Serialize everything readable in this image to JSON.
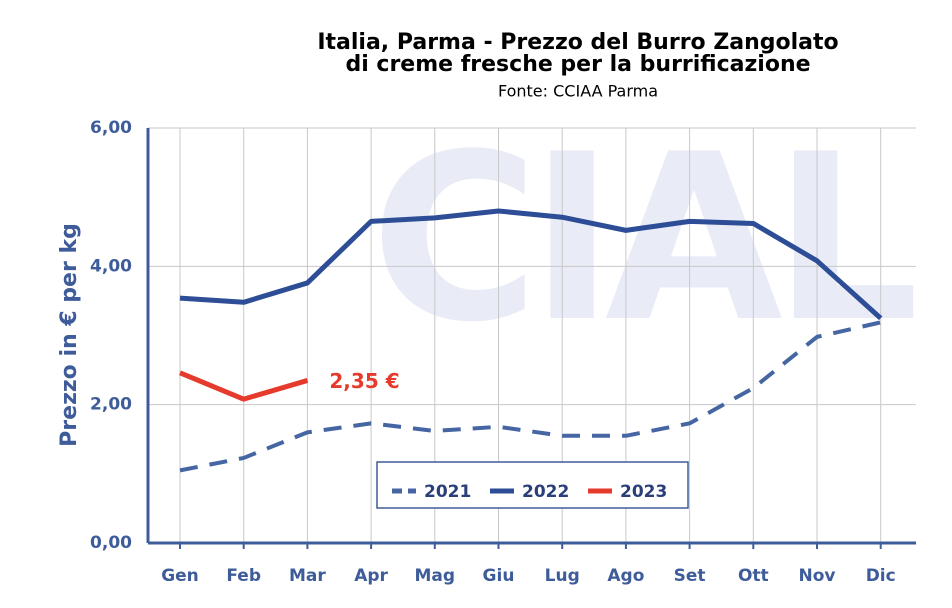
{
  "chart_data": {
    "type": "line",
    "title": "Italia, Parma - Prezzo del Burro Zangolato",
    "subtitle": "di creme fresche per la burrificazione",
    "source": "Fonte: CCIAA Parma",
    "watermark": "CIAL",
    "ylabel": "Prezzo in € per kg",
    "categories": [
      "Gen",
      "Feb",
      "Mar",
      "Apr",
      "Mag",
      "Giu",
      "Lug",
      "Ago",
      "Set",
      "Ott",
      "Nov",
      "Dic"
    ],
    "series": [
      {
        "name": "2021",
        "color": "#4566a3",
        "dashed": true,
        "values": [
          1.05,
          1.23,
          1.6,
          1.73,
          1.62,
          1.68,
          1.55,
          1.55,
          1.73,
          2.24,
          2.98,
          3.19
        ]
      },
      {
        "name": "2022",
        "color": "#2d4e96",
        "dashed": false,
        "values": [
          3.54,
          3.48,
          3.76,
          4.65,
          4.7,
          4.8,
          4.71,
          4.52,
          4.65,
          4.62,
          4.08,
          3.25
        ]
      },
      {
        "name": "2023",
        "color": "#e63a2c",
        "dashed": false,
        "values": [
          2.46,
          2.08,
          2.35,
          null,
          null,
          null,
          null,
          null,
          null,
          null,
          null,
          null
        ]
      }
    ],
    "annotation": "2,35 €",
    "ylim": [
      0,
      6
    ],
    "yticks": [
      {
        "value": 0,
        "label": "0,00"
      },
      {
        "value": 2,
        "label": "2,00"
      },
      {
        "value": 4,
        "label": "4,00"
      },
      {
        "value": 6,
        "label": "6,00"
      }
    ],
    "grid": true
  }
}
